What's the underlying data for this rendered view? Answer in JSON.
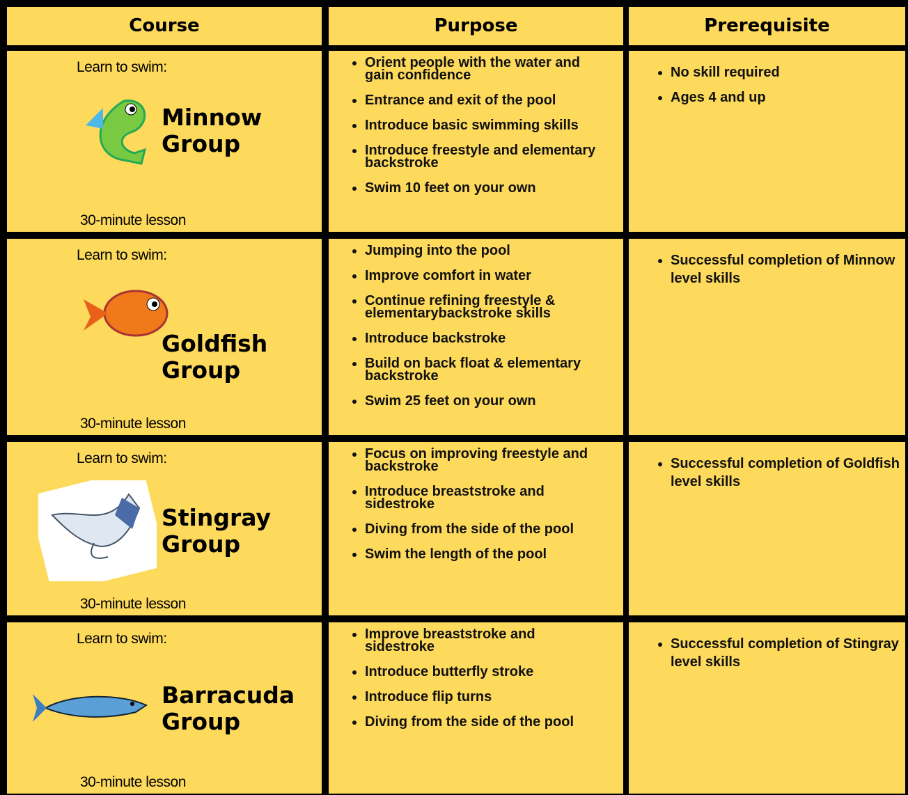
{
  "table": {
    "header": [
      "Course",
      "Purpose",
      "Prerequisite"
    ],
    "rows": [
      {
        "intro": "Learn to swim:",
        "name": "Minnow Group",
        "lesson": "30-minute lesson",
        "purpose": [
          "Orient people with the water and gain confidence",
          "Entrance and exit of the pool",
          "Introduce basic swimming skills",
          "Introduce freestyle and elementary backstroke",
          "Swim 10 feet on your own"
        ],
        "prerequisite": [
          "No skill required",
          "Ages 4 and up"
        ]
      },
      {
        "intro": "Learn to swim:",
        "name": "Goldfish Group",
        "lesson": "30-minute lesson",
        "purpose": [
          "Jumping into the pool",
          "Improve comfort in water",
          "Continue refining freestyle & elementarybackstroke skills",
          "Introduce backstroke",
          "Build on back float & elementary backstroke",
          "Swim 25 feet on your own"
        ],
        "prerequisite": [
          "Successful completion of Minnow level skills"
        ]
      },
      {
        "intro": "Learn to swim:",
        "name": "Stingray Group",
        "lesson": "30-minute lesson",
        "purpose": [
          "Focus on improving freestyle and backstroke",
          "Introduce breaststroke and sidestroke",
          "Diving from the side of the pool",
          "Swim the length of the pool"
        ],
        "prerequisite": [
          "Successful completion of Goldfish level skills"
        ]
      },
      {
        "intro": "Learn to swim:",
        "name": "Barracuda Group",
        "lesson": "30-minute lesson",
        "purpose": [
          "Improve breaststroke and sidestroke",
          "Introduce butterfly stroke",
          "Introduce flip turns",
          "Diving from the side of the pool"
        ],
        "prerequisite": [
          "Successful completion of Stingray level skills"
        ]
      }
    ]
  }
}
